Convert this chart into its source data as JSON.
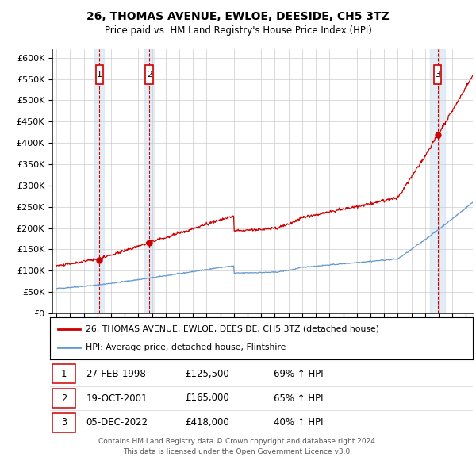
{
  "title": "26, THOMAS AVENUE, EWLOE, DEESIDE, CH5 3TZ",
  "subtitle": "Price paid vs. HM Land Registry's House Price Index (HPI)",
  "legend_line1": "26, THOMAS AVENUE, EWLOE, DEESIDE, CH5 3TZ (detached house)",
  "legend_line2": "HPI: Average price, detached house, Flintshire",
  "footer_line1": "Contains HM Land Registry data © Crown copyright and database right 2024.",
  "footer_line2": "This data is licensed under the Open Government Licence v3.0.",
  "sales": [
    {
      "label": "1",
      "date": "27-FEB-1998",
      "price": 125500,
      "pct": "69% ↑ HPI",
      "x": 1998.15
    },
    {
      "label": "2",
      "date": "19-OCT-2001",
      "price": 165000,
      "pct": "65% ↑ HPI",
      "x": 2001.8
    },
    {
      "label": "3",
      "date": "05-DEC-2022",
      "price": 418000,
      "pct": "40% ↑ HPI",
      "x": 2022.92
    }
  ],
  "hpi_line_color": "#6699cc",
  "price_line_color": "#cc0000",
  "shading_color": "#d6e4f0",
  "dashed_color": "#cc0000",
  "ylim": [
    0,
    620000
  ],
  "yticks": [
    0,
    50000,
    100000,
    150000,
    200000,
    250000,
    300000,
    350000,
    400000,
    450000,
    500000,
    550000,
    600000
  ],
  "xlim_start": 1994.7,
  "xlim_end": 2025.5,
  "background_color": "#ffffff",
  "grid_color": "#cccccc",
  "row_data": [
    [
      "1",
      "27-FEB-1998",
      "£125,500",
      "69% ↑ HPI"
    ],
    [
      "2",
      "19-OCT-2001",
      "£165,000",
      "65% ↑ HPI"
    ],
    [
      "3",
      "05-DEC-2022",
      "£418,000",
      "40% ↑ HPI"
    ]
  ]
}
